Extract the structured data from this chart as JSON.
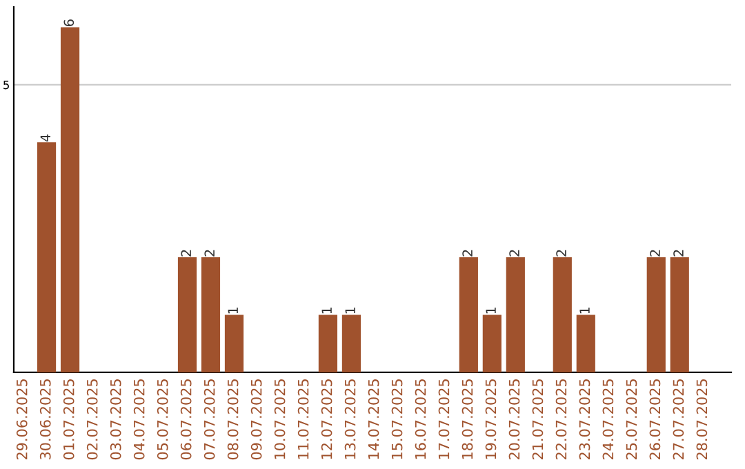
{
  "chart_data": {
    "type": "bar",
    "categories": [
      "29.06.2025",
      "30.06.2025",
      "01.07.2025",
      "02.07.2025",
      "03.07.2025",
      "04.07.2025",
      "05.07.2025",
      "06.07.2025",
      "07.07.2025",
      "08.07.2025",
      "09.07.2025",
      "10.07.2025",
      "11.07.2025",
      "12.07.2025",
      "13.07.2025",
      "14.07.2025",
      "15.07.2025",
      "16.07.2025",
      "17.07.2025",
      "18.07.2025",
      "19.07.2025",
      "20.07.2025",
      "21.07.2025",
      "22.07.2025",
      "23.07.2025",
      "24.07.2025",
      "25.07.2025",
      "26.07.2025",
      "27.07.2025",
      "28.07.2025"
    ],
    "values": [
      0,
      4,
      6,
      0,
      0,
      0,
      0,
      2,
      2,
      1,
      0,
      0,
      0,
      1,
      1,
      0,
      0,
      0,
      0,
      2,
      1,
      2,
      0,
      2,
      1,
      0,
      0,
      2,
      2,
      0
    ],
    "value_labels": [
      null,
      "4",
      "6",
      null,
      null,
      null,
      null,
      "2",
      "2",
      "1",
      null,
      null,
      null,
      "1",
      "1",
      null,
      null,
      null,
      null,
      "2",
      "1",
      "2",
      null,
      "2",
      "1",
      null,
      null,
      "2",
      "2",
      null
    ],
    "color": "#a0522d",
    "ylim": [
      0,
      6.35
    ],
    "yticks": [
      5
    ],
    "grid": "y"
  }
}
